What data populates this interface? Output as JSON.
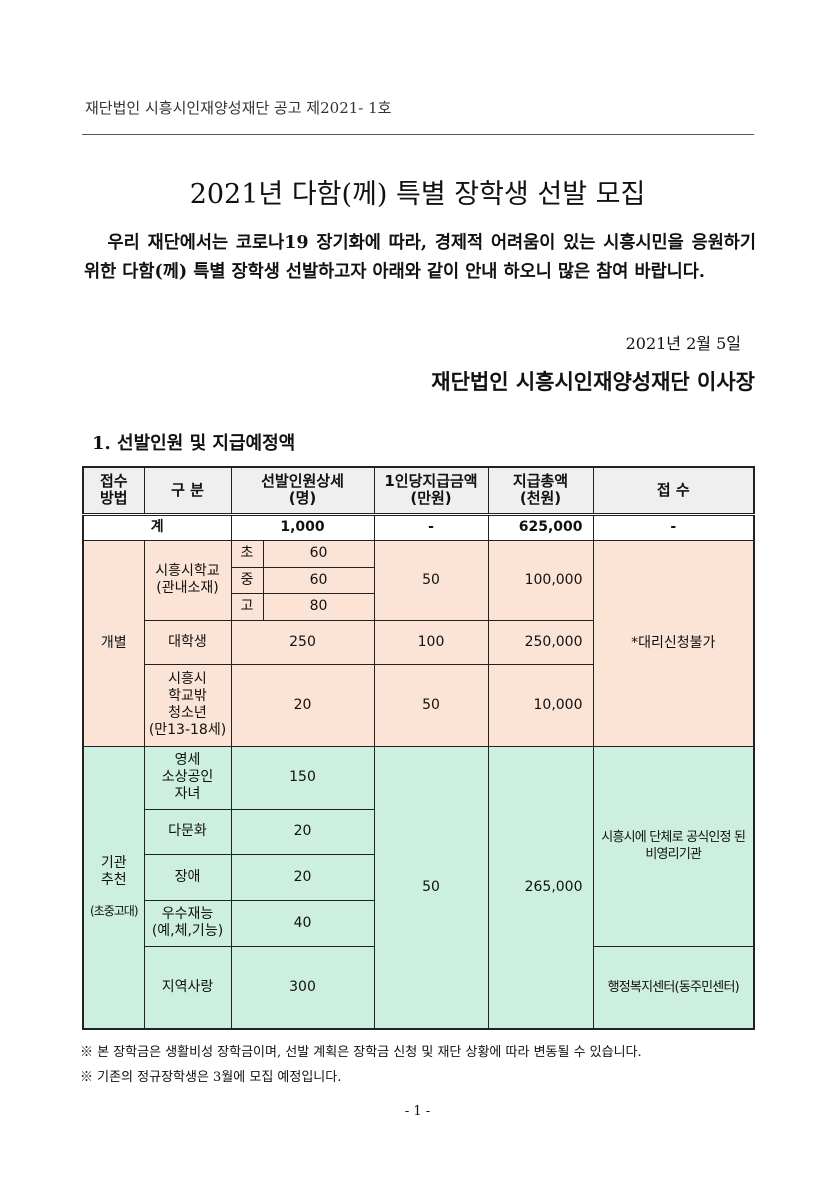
{
  "header": "재단법인 시흥시인재양성재단 공고 제2021- 1호",
  "title": "2021년 다함(께) 특별 장학생 선발 모집",
  "body": "우리 재단에서는 코로나19 장기화에 따라, 경제적 어려움이 있는 시흥시민을 응원하기 위한 다함(께) 특별 장학생 선발하고자 아래와 같이 안내 하오니 많은 참여 바랍니다.",
  "date": "2021년 2월 5일",
  "org": "재단법인 시흥시인재양성재단 이사장",
  "section": "1. 선발인원 및 지급예정액",
  "table": {
    "headers": [
      "접수\n방법",
      "구 분",
      "선발인원상세\n(명)",
      "1인당지급금액\n(만원)",
      "지급총액\n(천원)",
      "접 수"
    ],
    "total": {
      "label": "계",
      "count": "1,000",
      "per": "-",
      "sum": "625,000",
      "recv": "-"
    },
    "individual": {
      "method": "개별",
      "school": "시흥시학교\n(관내소재)",
      "levels": [
        {
          "l": "초",
          "n": "60"
        },
        {
          "l": "중",
          "n": "60"
        },
        {
          "l": "고",
          "n": "80"
        }
      ],
      "school_per": "50",
      "school_sum": "100,000",
      "univ": "대학생",
      "univ_n": "250",
      "univ_per": "100",
      "univ_sum": "250,000",
      "youth": "시흥시\n학교밖\n청소년\n(만13-18세)",
      "youth_n": "20",
      "youth_per": "50",
      "youth_sum": "10,000",
      "recv": "*대리신청불가"
    },
    "agency": {
      "method": "기관\n추천",
      "method_sub": "(초중고대)",
      "rows": [
        {
          "c": "영세\n소상공인\n자녀",
          "n": "150"
        },
        {
          "c": "다문화",
          "n": "20"
        },
        {
          "c": "장애",
          "n": "20"
        },
        {
          "c": "우수재능\n(예,체,기능)",
          "n": "40"
        },
        {
          "c": "지역사랑",
          "n": "300"
        }
      ],
      "per": "50",
      "sum": "265,000",
      "recv1": "시흥시에 단체로 공식인정 된\n비영리기관",
      "recv2": "행정복지센터(동주민센터)"
    }
  },
  "notes": [
    "※ 본 장학금은 생활비성 장학금이며, 선발 계획은 장학금 신청 및 재단 상황에 따라 변동될 수 있습니다.",
    "※ 기존의 정규장학생은 3월에 모집 예정입니다."
  ],
  "page": "- 1 -",
  "colors": {
    "individual_bg": "#fbe3d5",
    "agency_bg": "#cdefe0",
    "header_bg": "#efefef"
  }
}
